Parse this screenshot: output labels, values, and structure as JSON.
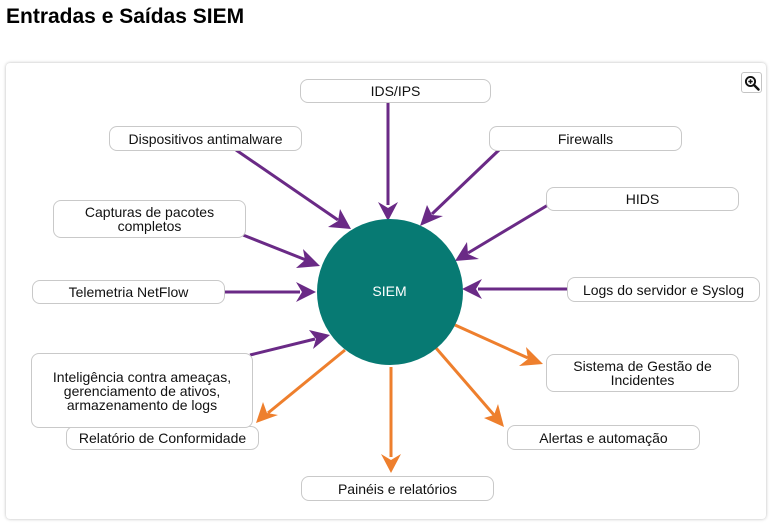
{
  "page": {
    "title": "Entradas e Saídas SIEM"
  },
  "colors": {
    "center": "#077a73",
    "input_arrow": "#6a2a86",
    "output_arrow": "#ee7f2d",
    "node_border": "#c9c9c9"
  },
  "toolbar": {
    "zoom_icon": "magnifier-plus-icon"
  },
  "center": {
    "label": "SIEM"
  },
  "inputs": [
    {
      "id": "ids-ips",
      "label": "IDS/IPS"
    },
    {
      "id": "firewalls",
      "label": "Firewalls"
    },
    {
      "id": "hids",
      "label": "HIDS"
    },
    {
      "id": "logs",
      "label": "Logs do servidor e Syslog"
    },
    {
      "id": "antimalware",
      "label": "Dispositivos antimalware"
    },
    {
      "id": "captures",
      "label": "Capturas de pacotes completos"
    },
    {
      "id": "netflow",
      "label": "Telemetria NetFlow"
    },
    {
      "id": "intel",
      "label": "Inteligência contra ameaças, gerenciamento de ativos, armazenamento de logs"
    }
  ],
  "outputs": [
    {
      "id": "incident",
      "label": "Sistema de Gestão de Incidentes"
    },
    {
      "id": "alerts",
      "label": "Alertas e automação"
    },
    {
      "id": "dashboards",
      "label": "Painéis e relatórios"
    },
    {
      "id": "compliance",
      "label": "Relatório de Conformidade"
    }
  ]
}
